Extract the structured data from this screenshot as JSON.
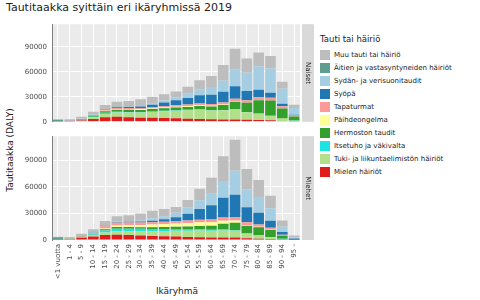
{
  "chart_data": {
    "type": "bar",
    "title": "Tautitaakka syittäin eri ikäryhmissä 2019",
    "x_label": "Ikäryhmä",
    "y_label": "Tautitaakka (DALY)",
    "legend_title": "Tauti tai häiriö",
    "legend": "right",
    "stacked": true,
    "grid": true,
    "categories": [
      "<1 vuotta",
      "1 - 4",
      "5 - 9",
      "10 - 14",
      "15 - 19",
      "20 - 24",
      "25 - 29",
      "30 - 34",
      "35 - 39",
      "40 - 44",
      "45 - 49",
      "50 - 54",
      "55 - 59",
      "60 - 64",
      "65 - 69",
      "70 - 74",
      "75 - 79",
      "80 - 84",
      "85 - 89",
      "90 - 94",
      "95 -"
    ],
    "ylim": [
      0,
      117000
    ],
    "yticks": [
      0,
      30000,
      60000,
      90000
    ],
    "panels": [
      {
        "name": "Naiset",
        "series": [
          {
            "name": "Muu tauti tai häiriö",
            "color": "#bdbdbd",
            "values": [
              700,
              1500,
              2400,
              3600,
              4600,
              5500,
              5800,
              6900,
              7500,
              7400,
              7000,
              8400,
              11000,
              13000,
              19000,
              25000,
              17000,
              16500,
              15000,
              8500,
              4000
            ]
          },
          {
            "name": "Äitien ja vastasyntyneiden häiriöt",
            "color": "#5f9e8f",
            "values": [
              1500,
              0,
              0,
              0,
              100,
              500,
              800,
              600,
              200,
              0,
              0,
              0,
              0,
              0,
              0,
              0,
              0,
              0,
              0,
              0,
              0
            ]
          },
          {
            "name": "Sydän- ja verisuonitaudit",
            "color": "#a6cee3",
            "values": [
              50,
              50,
              100,
              200,
              400,
              600,
              800,
              1200,
              1800,
              2500,
              3500,
              5000,
              7000,
              9500,
              13000,
              20000,
              22000,
              28000,
              29000,
              18000,
              8000
            ]
          },
          {
            "name": "Syöpä",
            "color": "#1f78b4",
            "values": [
              100,
              200,
              200,
              300,
              500,
              800,
              1200,
              2000,
              3000,
              4500,
              6000,
              8000,
              10000,
              11000,
              13000,
              15000,
              11000,
              9000,
              6000,
              3000,
              800
            ]
          },
          {
            "name": "Tapaturmat",
            "color": "#fb9a99",
            "values": [
              200,
              300,
              400,
              600,
              1200,
              1400,
              1400,
              1400,
              1500,
              1600,
              1700,
              1800,
              2000,
              2200,
              2500,
              3000,
              3000,
              3500,
              3500,
              2500,
              1200
            ]
          },
          {
            "name": "Päihdeongelma",
            "color": "#ffff99",
            "values": [
              0,
              0,
              0,
              100,
              500,
              700,
              700,
              700,
              800,
              900,
              1000,
              1000,
              900,
              700,
              500,
              400,
              200,
              100,
              50,
              20,
              0
            ]
          },
          {
            "name": "Hermoston taudit",
            "color": "#33a02c",
            "values": [
              300,
              400,
              800,
              1200,
              2000,
              2500,
              2500,
              2500,
              2800,
              3000,
              3200,
              3500,
              4000,
              4500,
              6000,
              9000,
              11000,
              16000,
              18000,
              12000,
              5000
            ]
          },
          {
            "name": "Itsetuho ja väkivalta",
            "color": "#1ee3e3",
            "values": [
              0,
              0,
              100,
              500,
              1200,
              1000,
              800,
              700,
              600,
              600,
              600,
              500,
              500,
              400,
              300,
              300,
              200,
              200,
              100,
              50,
              20
            ]
          },
          {
            "name": "Tuki- ja liikuntaelimistön häiriöt",
            "color": "#b2df8a",
            "values": [
              0,
              100,
              500,
              2000,
              4000,
              5000,
              5500,
              6000,
              7000,
              8000,
              9000,
              10000,
              11000,
              10500,
              11000,
              12000,
              9000,
              7500,
              5500,
              3000,
              1000
            ]
          },
          {
            "name": "Mielen häiriöt",
            "color": "#e31a1c",
            "values": [
              300,
              500,
              1500,
              3500,
              5500,
              6000,
              5500,
              5000,
              4800,
              4500,
              4200,
              3800,
              3500,
              3000,
              2800,
              2800,
              2500,
              2200,
              1800,
              1000,
              400
            ]
          }
        ]
      },
      {
        "name": "Miehet",
        "series": [
          {
            "name": "Muu tauti tai häiriö",
            "color": "#bdbdbd",
            "values": [
              600,
              1400,
              2600,
              3600,
              5000,
              6000,
              6500,
              7500,
              8500,
              8000,
              6500,
              8500,
              13000,
              18000,
              28000,
              35000,
              23000,
              19000,
              14000,
              7000,
              2000
            ]
          },
          {
            "name": "Äitien ja vastasyntyneiden häiriöt",
            "color": "#5f9e8f",
            "values": [
              2000,
              0,
              0,
              0,
              0,
              0,
              0,
              0,
              0,
              0,
              0,
              0,
              0,
              0,
              0,
              0,
              0,
              0,
              0,
              0,
              0
            ]
          },
          {
            "name": "Sydän- ja verisuonitaudit",
            "color": "#a6cee3",
            "values": [
              50,
              50,
              100,
              200,
              400,
              600,
              1000,
              1600,
              2600,
              3600,
              5000,
              7000,
              10000,
              13000,
              19000,
              27000,
              20000,
              18000,
              14000,
              6000,
              1200
            ]
          },
          {
            "name": "Syöpä",
            "color": "#1f78b4",
            "values": [
              100,
              200,
              200,
              300,
              500,
              700,
              900,
              1200,
              1800,
              2800,
              4500,
              7500,
              12000,
              16000,
              22000,
              25000,
              17000,
              13000,
              8000,
              3000,
              500
            ]
          },
          {
            "name": "Tapaturmat",
            "color": "#fb9a99",
            "values": [
              200,
              300,
              400,
              700,
              2500,
              3000,
              2800,
              2600,
              2600,
              2600,
              2600,
              2700,
              3000,
              3200,
              3800,
              4000,
              3000,
              2800,
              2200,
              1200,
              300
            ]
          },
          {
            "name": "Päihdeongelma",
            "color": "#ffff99",
            "values": [
              0,
              0,
              0,
              100,
              900,
              1800,
              2200,
              2600,
              3000,
              3300,
              3600,
              4000,
              4200,
              4000,
              3500,
              2500,
              1000,
              400,
              150,
              30,
              0
            ]
          },
          {
            "name": "Hermoston taudit",
            "color": "#33a02c",
            "values": [
              300,
              400,
              700,
              1000,
              1500,
              1800,
              1800,
              1800,
              2000,
              2200,
              2500,
              3000,
              3500,
              4500,
              6500,
              8500,
              8500,
              9000,
              8000,
              3500,
              700
            ]
          },
          {
            "name": "Itsetuho ja väkivalta",
            "color": "#1ee3e3",
            "values": [
              0,
              0,
              100,
              600,
              2200,
              2800,
              2800,
              2600,
              2400,
              2200,
              2000,
              1800,
              1500,
              1200,
              900,
              700,
              500,
              400,
              200,
              80,
              10
            ]
          },
          {
            "name": "Tuki- ja liikuntaelimistön häiriöt",
            "color": "#b2df8a",
            "values": [
              0,
              100,
              400,
              1500,
              3000,
              4000,
              4500,
              5000,
              5500,
              6000,
              6500,
              7000,
              7500,
              7500,
              8000,
              7500,
              5000,
              3500,
              2200,
              800,
              150
            ]
          },
          {
            "name": "Mielen häiriöt",
            "color": "#e31a1c",
            "values": [
              400,
              800,
              2500,
              4000,
              5500,
              6000,
              5500,
              5000,
              4500,
              4200,
              4000,
              3500,
              3200,
              2800,
              2800,
              2800,
              2000,
              1500,
              1000,
              400,
              80
            ]
          }
        ]
      }
    ]
  }
}
